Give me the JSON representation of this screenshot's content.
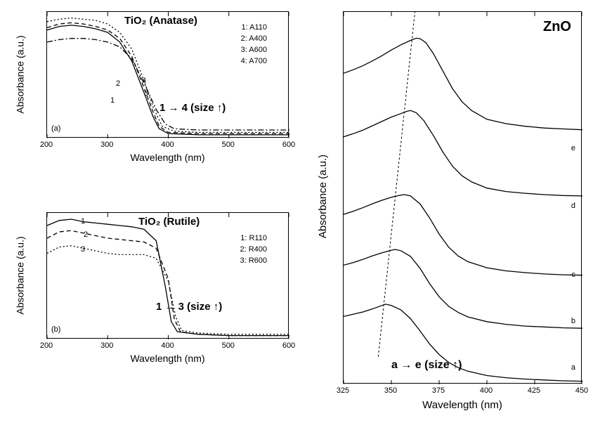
{
  "panelA": {
    "title": "TiO₂ (Anatase)",
    "ylabel": "Absorbance (a.u.)",
    "xlabel": "Wavelength (nm)",
    "xlim": [
      200,
      600
    ],
    "xticks": [
      200,
      300,
      400,
      500,
      600
    ],
    "panel_tag": "(a)",
    "legend": [
      "1: A110",
      "2: A400",
      "3: A600",
      "4: A700"
    ],
    "annotation": "1 → 4 (size ↑)",
    "curve_tags": [
      "1",
      "2",
      "3",
      "4"
    ],
    "series": [
      {
        "id": "1",
        "dash": "",
        "color": "#000000",
        "pts": [
          [
            200,
            0.9
          ],
          [
            220,
            0.93
          ],
          [
            240,
            0.94
          ],
          [
            260,
            0.93
          ],
          [
            280,
            0.91
          ],
          [
            300,
            0.88
          ],
          [
            320,
            0.8
          ],
          [
            340,
            0.64
          ],
          [
            360,
            0.38
          ],
          [
            375,
            0.18
          ],
          [
            385,
            0.08
          ],
          [
            400,
            0.04
          ],
          [
            450,
            0.03
          ],
          [
            500,
            0.03
          ],
          [
            550,
            0.03
          ],
          [
            600,
            0.03
          ]
        ]
      },
      {
        "id": "2",
        "dash": "6,4",
        "color": "#000000",
        "pts": [
          [
            200,
            0.92
          ],
          [
            220,
            0.95
          ],
          [
            240,
            0.96
          ],
          [
            260,
            0.95
          ],
          [
            280,
            0.93
          ],
          [
            300,
            0.9
          ],
          [
            320,
            0.83
          ],
          [
            340,
            0.68
          ],
          [
            360,
            0.42
          ],
          [
            375,
            0.22
          ],
          [
            385,
            0.1
          ],
          [
            400,
            0.05
          ],
          [
            450,
            0.04
          ],
          [
            500,
            0.04
          ],
          [
            550,
            0.04
          ],
          [
            600,
            0.04
          ]
        ]
      },
      {
        "id": "3",
        "dash": "2,3",
        "color": "#000000",
        "pts": [
          [
            200,
            0.97
          ],
          [
            220,
            0.99
          ],
          [
            240,
            1.0
          ],
          [
            260,
            0.99
          ],
          [
            280,
            0.98
          ],
          [
            300,
            0.95
          ],
          [
            320,
            0.88
          ],
          [
            340,
            0.74
          ],
          [
            360,
            0.48
          ],
          [
            375,
            0.26
          ],
          [
            390,
            0.1
          ],
          [
            410,
            0.06
          ],
          [
            450,
            0.05
          ],
          [
            500,
            0.05
          ],
          [
            550,
            0.05
          ],
          [
            600,
            0.05
          ]
        ]
      },
      {
        "id": "4",
        "dash": "8,3,2,3",
        "color": "#000000",
        "pts": [
          [
            200,
            0.8
          ],
          [
            220,
            0.82
          ],
          [
            240,
            0.83
          ],
          [
            260,
            0.83
          ],
          [
            280,
            0.82
          ],
          [
            300,
            0.8
          ],
          [
            320,
            0.76
          ],
          [
            340,
            0.66
          ],
          [
            360,
            0.46
          ],
          [
            380,
            0.24
          ],
          [
            395,
            0.12
          ],
          [
            410,
            0.08
          ],
          [
            450,
            0.07
          ],
          [
            500,
            0.07
          ],
          [
            550,
            0.07
          ],
          [
            600,
            0.07
          ]
        ]
      }
    ]
  },
  "panelB": {
    "title": "TiO₂ (Rutile)",
    "ylabel": "Absorbance (a.u.)",
    "xlabel": "Wavelength (nm)",
    "xlim": [
      200,
      600
    ],
    "xticks": [
      200,
      300,
      400,
      500,
      600
    ],
    "panel_tag": "(b)",
    "legend": [
      "1: R110",
      "2: R400",
      "3: R600"
    ],
    "annotation": "1 → 3 (size ↑)",
    "curve_tags": [
      "1",
      "2",
      "3"
    ],
    "series": [
      {
        "id": "1",
        "dash": "",
        "color": "#000000",
        "pts": [
          [
            200,
            0.9
          ],
          [
            220,
            0.94
          ],
          [
            240,
            0.95
          ],
          [
            260,
            0.93
          ],
          [
            280,
            0.92
          ],
          [
            300,
            0.91
          ],
          [
            320,
            0.9
          ],
          [
            340,
            0.89
          ],
          [
            360,
            0.87
          ],
          [
            380,
            0.78
          ],
          [
            395,
            0.42
          ],
          [
            405,
            0.14
          ],
          [
            415,
            0.06
          ],
          [
            450,
            0.04
          ],
          [
            500,
            0.03
          ],
          [
            550,
            0.03
          ],
          [
            600,
            0.03
          ]
        ]
      },
      {
        "id": "2",
        "dash": "6,4",
        "color": "#000000",
        "pts": [
          [
            200,
            0.8
          ],
          [
            220,
            0.85
          ],
          [
            240,
            0.86
          ],
          [
            260,
            0.84
          ],
          [
            280,
            0.82
          ],
          [
            300,
            0.8
          ],
          [
            320,
            0.79
          ],
          [
            340,
            0.78
          ],
          [
            360,
            0.77
          ],
          [
            380,
            0.72
          ],
          [
            400,
            0.48
          ],
          [
            410,
            0.16
          ],
          [
            420,
            0.06
          ],
          [
            450,
            0.04
          ],
          [
            500,
            0.03
          ],
          [
            550,
            0.03
          ],
          [
            600,
            0.03
          ]
        ]
      },
      {
        "id": "3",
        "dash": "2,3",
        "color": "#000000",
        "pts": [
          [
            200,
            0.68
          ],
          [
            220,
            0.73
          ],
          [
            240,
            0.74
          ],
          [
            260,
            0.72
          ],
          [
            280,
            0.7
          ],
          [
            300,
            0.68
          ],
          [
            320,
            0.67
          ],
          [
            340,
            0.67
          ],
          [
            360,
            0.67
          ],
          [
            380,
            0.64
          ],
          [
            400,
            0.46
          ],
          [
            412,
            0.18
          ],
          [
            422,
            0.07
          ],
          [
            450,
            0.05
          ],
          [
            500,
            0.04
          ],
          [
            550,
            0.04
          ],
          [
            600,
            0.04
          ]
        ]
      }
    ]
  },
  "panelC": {
    "title": "ZnO",
    "ylabel": "Absorbance (a.u.)",
    "xlabel": "Wavelength (nm)",
    "xlim": [
      325,
      450
    ],
    "xticks": [
      325,
      350,
      375,
      400,
      425,
      450
    ],
    "annotation": "a → e (size ↑)",
    "curve_tags": [
      "a",
      "b",
      "c",
      "d",
      "e"
    ],
    "guide_line": [
      [
        346,
        0.18
      ],
      [
        365,
        0.96
      ]
    ],
    "series": [
      {
        "id": "a",
        "offset": 0.0,
        "peak_x": 347,
        "pts": [
          [
            325,
            0.155
          ],
          [
            330,
            0.16
          ],
          [
            335,
            0.165
          ],
          [
            340,
            0.172
          ],
          [
            345,
            0.18
          ],
          [
            347,
            0.183
          ],
          [
            350,
            0.18
          ],
          [
            355,
            0.17
          ],
          [
            360,
            0.15
          ],
          [
            365,
            0.122
          ],
          [
            370,
            0.092
          ],
          [
            375,
            0.068
          ],
          [
            380,
            0.05
          ],
          [
            385,
            0.038
          ],
          [
            390,
            0.03
          ],
          [
            400,
            0.02
          ],
          [
            410,
            0.015
          ],
          [
            420,
            0.012
          ],
          [
            430,
            0.01
          ],
          [
            440,
            0.008
          ],
          [
            450,
            0.007
          ]
        ]
      },
      {
        "id": "b",
        "offset": 0.12,
        "peak_x": 352,
        "pts": [
          [
            325,
            0.152
          ],
          [
            330,
            0.158
          ],
          [
            335,
            0.165
          ],
          [
            340,
            0.173
          ],
          [
            345,
            0.18
          ],
          [
            350,
            0.186
          ],
          [
            352,
            0.188
          ],
          [
            355,
            0.185
          ],
          [
            360,
            0.172
          ],
          [
            365,
            0.145
          ],
          [
            370,
            0.11
          ],
          [
            375,
            0.08
          ],
          [
            380,
            0.058
          ],
          [
            385,
            0.044
          ],
          [
            390,
            0.034
          ],
          [
            400,
            0.023
          ],
          [
            410,
            0.017
          ],
          [
            420,
            0.013
          ],
          [
            430,
            0.011
          ],
          [
            440,
            0.009
          ],
          [
            450,
            0.008
          ]
        ]
      },
      {
        "id": "c",
        "offset": 0.24,
        "peak_x": 357,
        "pts": [
          [
            325,
            0.148
          ],
          [
            330,
            0.155
          ],
          [
            335,
            0.163
          ],
          [
            340,
            0.172
          ],
          [
            345,
            0.18
          ],
          [
            350,
            0.187
          ],
          [
            355,
            0.192
          ],
          [
            357,
            0.193
          ],
          [
            360,
            0.19
          ],
          [
            365,
            0.172
          ],
          [
            370,
            0.14
          ],
          [
            375,
            0.103
          ],
          [
            380,
            0.073
          ],
          [
            385,
            0.053
          ],
          [
            390,
            0.04
          ],
          [
            400,
            0.026
          ],
          [
            410,
            0.019
          ],
          [
            420,
            0.015
          ],
          [
            430,
            0.012
          ],
          [
            440,
            0.01
          ],
          [
            450,
            0.009
          ]
        ]
      },
      {
        "id": "d",
        "offset": 0.42,
        "peak_x": 360,
        "pts": [
          [
            325,
            0.145
          ],
          [
            330,
            0.152
          ],
          [
            335,
            0.16
          ],
          [
            340,
            0.17
          ],
          [
            345,
            0.18
          ],
          [
            350,
            0.19
          ],
          [
            355,
            0.198
          ],
          [
            358,
            0.203
          ],
          [
            360,
            0.205
          ],
          [
            363,
            0.2
          ],
          [
            367,
            0.182
          ],
          [
            372,
            0.148
          ],
          [
            377,
            0.11
          ],
          [
            382,
            0.078
          ],
          [
            387,
            0.056
          ],
          [
            392,
            0.042
          ],
          [
            400,
            0.028
          ],
          [
            410,
            0.02
          ],
          [
            420,
            0.016
          ],
          [
            430,
            0.013
          ],
          [
            440,
            0.011
          ],
          [
            450,
            0.01
          ]
        ]
      },
      {
        "id": "e",
        "offset": 0.57,
        "peak_x": 364,
        "pts": [
          [
            325,
            0.14
          ],
          [
            330,
            0.148
          ],
          [
            335,
            0.157
          ],
          [
            340,
            0.168
          ],
          [
            345,
            0.18
          ],
          [
            350,
            0.193
          ],
          [
            355,
            0.205
          ],
          [
            360,
            0.215
          ],
          [
            363,
            0.22
          ],
          [
            365,
            0.219
          ],
          [
            368,
            0.21
          ],
          [
            372,
            0.185
          ],
          [
            377,
            0.145
          ],
          [
            382,
            0.105
          ],
          [
            387,
            0.075
          ],
          [
            392,
            0.055
          ],
          [
            400,
            0.035
          ],
          [
            410,
            0.025
          ],
          [
            420,
            0.019
          ],
          [
            430,
            0.015
          ],
          [
            440,
            0.013
          ],
          [
            450,
            0.011
          ]
        ]
      }
    ]
  }
}
